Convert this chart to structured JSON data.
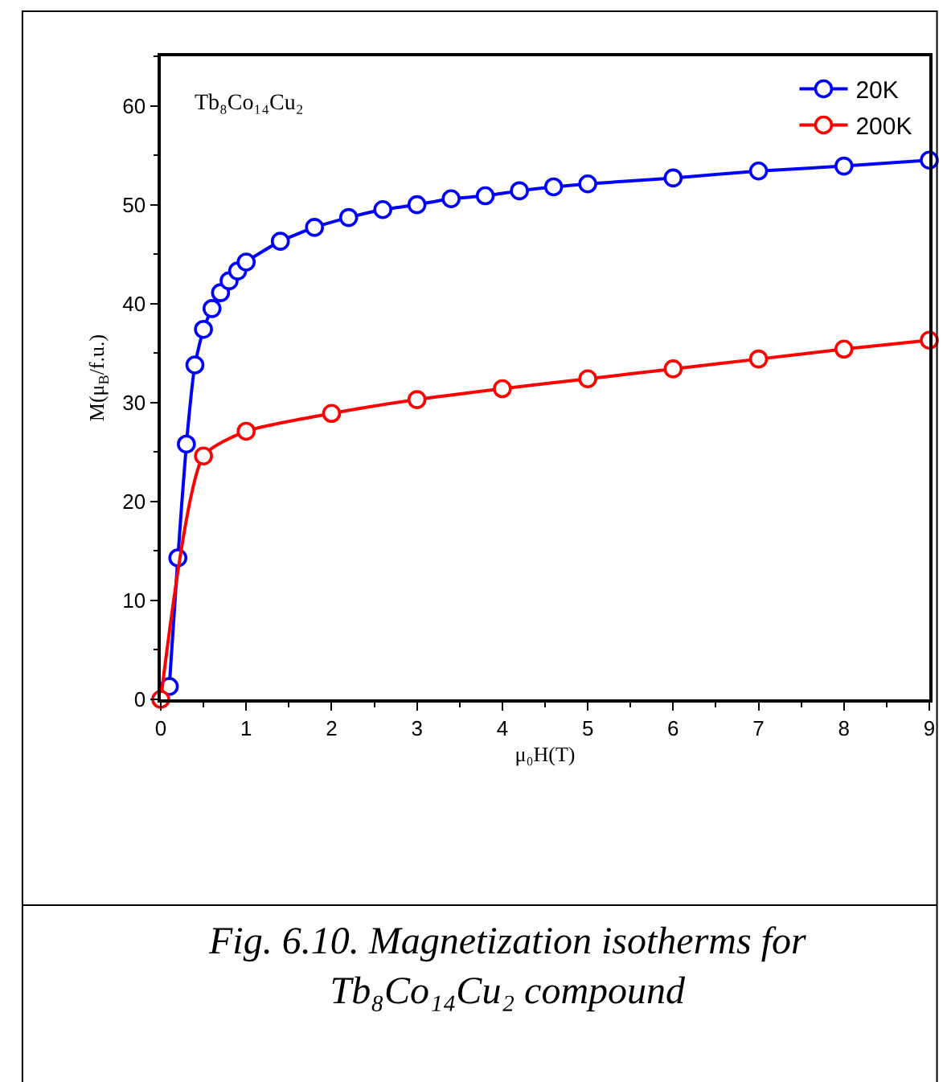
{
  "chart_data": {
    "type": "line",
    "xlabel": "μ₀H(T)",
    "ylabel": "M(μ$_{B}$/f.u.)",
    "series": [
      {
        "name": "20K",
        "color": "#0000ff",
        "x": [
          0.1,
          0.2,
          0.3,
          0.4,
          0.5,
          0.6,
          0.7,
          0.8,
          0.9,
          1.0,
          1.4,
          1.8,
          2.2,
          2.6,
          3.0,
          3.4,
          3.8,
          4.2,
          4.6,
          5.0,
          6.0,
          7.0,
          8.0,
          9.0
        ],
        "values": [
          1.3,
          14.3,
          25.8,
          33.8,
          37.4,
          39.5,
          41.1,
          42.3,
          43.3,
          44.2,
          46.3,
          47.7,
          48.7,
          49.5,
          50.0,
          50.6,
          50.9,
          51.4,
          51.8,
          52.1,
          52.7,
          53.4,
          53.9,
          54.5
        ]
      },
      {
        "name": "200K",
        "color": "#ff0000",
        "x": [
          0,
          0.5,
          1,
          2,
          3,
          4,
          5,
          6,
          7,
          8,
          9
        ],
        "values": [
          0,
          24.6,
          27.1,
          28.9,
          30.3,
          31.4,
          32.4,
          33.4,
          34.4,
          35.4,
          36.3
        ]
      }
    ],
    "xlim": [
      0,
      9
    ],
    "xticks": [
      0,
      1,
      2,
      3,
      4,
      5,
      6,
      7,
      8,
      9
    ],
    "ylim": [
      0,
      65
    ],
    "yticks": [
      0,
      10,
      20,
      30,
      40,
      50,
      60
    ],
    "legend": "top right",
    "marker": "circle",
    "line_style": "solid",
    "annotations": [
      "Tb₈Co₁₄Cu₂",
      "Fig. 6.10. Magnetization isotherms for Tb₈Co₁₄Cu₂ compound"
    ]
  }
}
